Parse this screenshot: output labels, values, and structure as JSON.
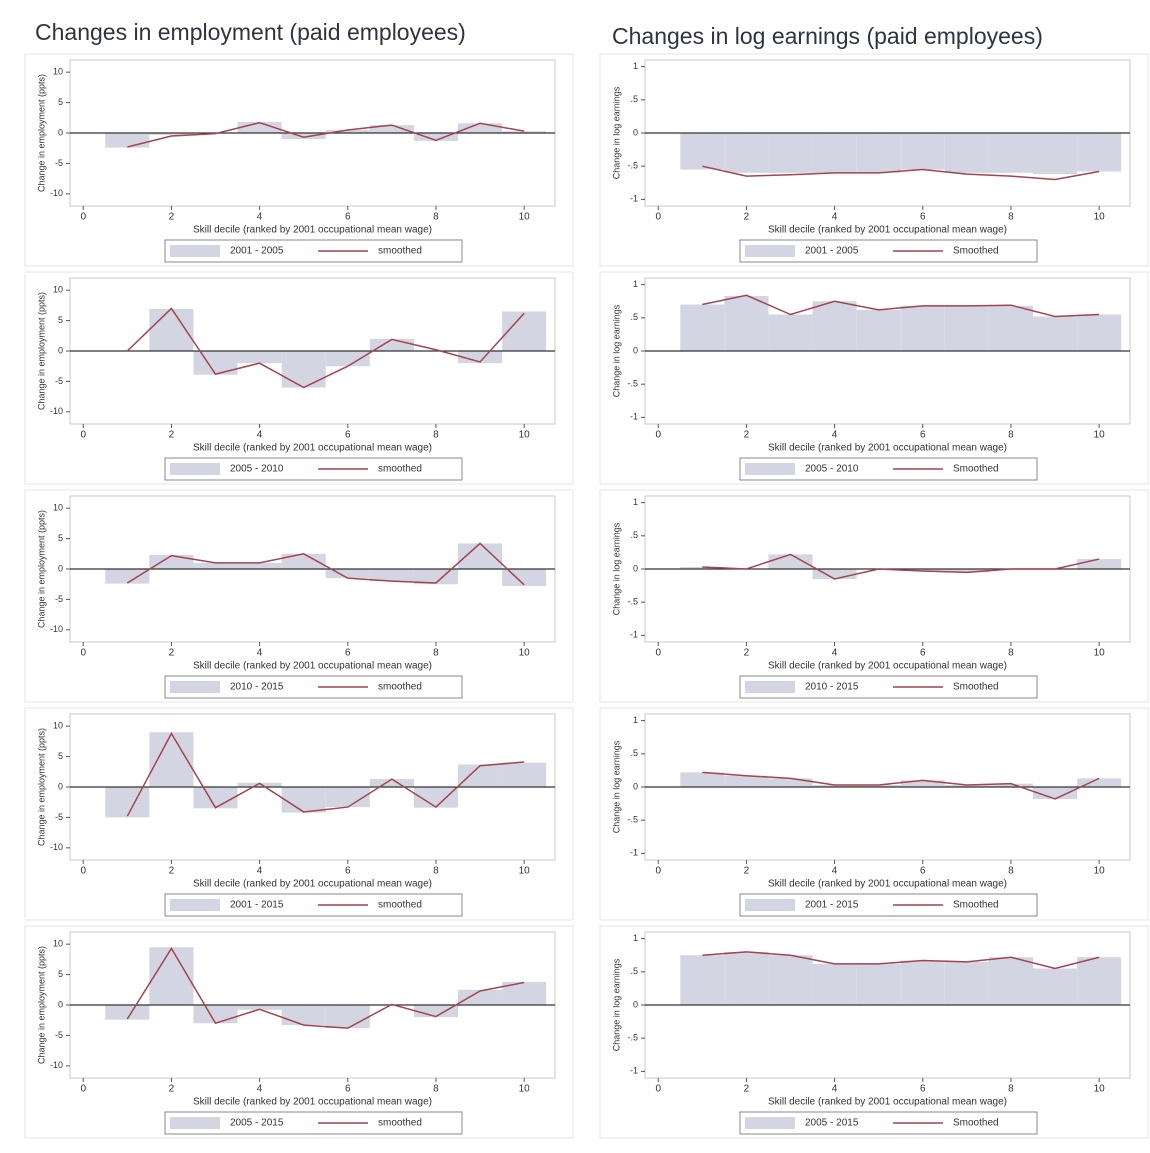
{
  "column_titles": [
    "Changes in employment (paid employees)",
    "Changes in log earnings (paid employees)"
  ],
  "chart_data": [
    {
      "type": "bar",
      "y_label": "Change in employment (ppts)",
      "x_label": "Skill decile (ranked by 2001 occupational mean wage)",
      "x": [
        1,
        2,
        3,
        4,
        5,
        6,
        7,
        8,
        9,
        10
      ],
      "xlim": [
        -0.3,
        10.7
      ],
      "xticks": [
        0,
        2,
        4,
        6,
        8,
        10
      ],
      "ylim": [
        -12,
        12
      ],
      "yticks": [
        -10,
        -5,
        0,
        5,
        10
      ],
      "series": [
        {
          "name": "2001 - 2005",
          "color": "#d3d6e2",
          "values": [
            -2.4,
            -0.3,
            0,
            1.8,
            -1,
            0.5,
            1.3,
            -1.3,
            1.6,
            0.3
          ]
        },
        {
          "name": "smoothed",
          "type": "line",
          "color": "#a3444e",
          "values": [
            -2.3,
            -0.5,
            -0.1,
            1.7,
            -0.7,
            0.5,
            1.3,
            -1.2,
            1.6,
            0.3
          ]
        }
      ]
    },
    {
      "type": "bar",
      "y_label": "Change in log earnings",
      "x_label": "Skill decile (ranked by 2001 occupational mean wage)",
      "x": [
        1,
        2,
        3,
        4,
        5,
        6,
        7,
        8,
        9,
        10
      ],
      "xlim": [
        -0.3,
        10.7
      ],
      "xticks": [
        0,
        2,
        4,
        6,
        8,
        10
      ],
      "ylim": [
        -1.1,
        1.1
      ],
      "yticks": [
        -1,
        {
          "value": -0.5,
          "label": "-.5"
        },
        0,
        {
          "value": 0.5,
          "label": ".5"
        },
        1
      ],
      "series": [
        {
          "name": "2001 - 2005",
          "color": "#d3d6e2",
          "values": [
            -0.55,
            -0.6,
            -0.6,
            -0.6,
            -0.6,
            -0.55,
            -0.6,
            -0.6,
            -0.62,
            -0.58
          ]
        },
        {
          "name": "Smoothed",
          "type": "line",
          "color": "#a3444e",
          "values": [
            -0.5,
            -0.65,
            -0.63,
            -0.6,
            -0.6,
            -0.55,
            -0.62,
            -0.65,
            -0.7,
            -0.58
          ]
        }
      ]
    },
    {
      "type": "bar",
      "y_label": "Change in employment (ppts)",
      "x_label": "Skill decile (ranked by 2001 occupational mean wage)",
      "x": [
        1,
        2,
        3,
        4,
        5,
        6,
        7,
        8,
        9,
        10
      ],
      "xlim": [
        -0.3,
        10.7
      ],
      "xticks": [
        0,
        2,
        4,
        6,
        8,
        10
      ],
      "ylim": [
        -12,
        12
      ],
      "yticks": [
        -10,
        -5,
        0,
        5,
        10
      ],
      "series": [
        {
          "name": "2005 - 2010",
          "color": "#d3d6e2",
          "values": [
            0,
            6.9,
            -3.9,
            -2,
            -6,
            -2.5,
            2,
            0,
            -2,
            6.5
          ]
        },
        {
          "name": "smoothed",
          "type": "line",
          "color": "#a3444e",
          "values": [
            0,
            7,
            -3.8,
            -2,
            -6,
            -2.5,
            1.9,
            0.2,
            -1.8,
            6.2
          ]
        }
      ]
    },
    {
      "type": "bar",
      "y_label": "Change in log earnings",
      "x_label": "Skill decile (ranked by 2001 occupational mean wage)",
      "x": [
        1,
        2,
        3,
        4,
        5,
        6,
        7,
        8,
        9,
        10
      ],
      "xlim": [
        -0.3,
        10.7
      ],
      "xticks": [
        0,
        2,
        4,
        6,
        8,
        10
      ],
      "ylim": [
        -1.1,
        1.1
      ],
      "yticks": [
        -1,
        {
          "value": -0.5,
          "label": "-.5"
        },
        0,
        {
          "value": 0.5,
          "label": ".5"
        },
        1
      ],
      "series": [
        {
          "name": "2005 - 2010",
          "color": "#d3d6e2",
          "values": [
            0.7,
            0.83,
            0.55,
            0.75,
            0.62,
            0.68,
            0.68,
            0.68,
            0.52,
            0.55
          ]
        },
        {
          "name": "Smoothed",
          "type": "line",
          "color": "#a3444e",
          "values": [
            0.7,
            0.84,
            0.55,
            0.75,
            0.62,
            0.68,
            0.68,
            0.69,
            0.52,
            0.55
          ]
        }
      ]
    },
    {
      "type": "bar",
      "y_label": "Change in employment (ppts)",
      "x_label": "Skill decile (ranked by 2001 occupational mean wage)",
      "x": [
        1,
        2,
        3,
        4,
        5,
        6,
        7,
        8,
        9,
        10
      ],
      "xlim": [
        -0.3,
        10.7
      ],
      "xticks": [
        0,
        2,
        4,
        6,
        8,
        10
      ],
      "ylim": [
        -12,
        12
      ],
      "yticks": [
        -10,
        -5,
        0,
        5,
        10
      ],
      "series": [
        {
          "name": "2010 - 2015",
          "color": "#d3d6e2",
          "values": [
            -2.4,
            2.3,
            1,
            1,
            2.5,
            -1.5,
            -2,
            -2.5,
            4.2,
            -2.8
          ]
        },
        {
          "name": "smoothed",
          "type": "line",
          "color": "#a3444e",
          "values": [
            -2.3,
            2.2,
            1,
            1,
            2.5,
            -1.5,
            -2,
            -2.3,
            4.2,
            -2.6
          ]
        }
      ]
    },
    {
      "type": "bar",
      "y_label": "Change in log earnings",
      "x_label": "Skill decile (ranked by 2001 occupational mean wage)",
      "x": [
        1,
        2,
        3,
        4,
        5,
        6,
        7,
        8,
        9,
        10
      ],
      "xlim": [
        -0.3,
        10.7
      ],
      "xticks": [
        0,
        2,
        4,
        6,
        8,
        10
      ],
      "ylim": [
        -1.1,
        1.1
      ],
      "yticks": [
        -1,
        {
          "value": -0.5,
          "label": "-.5"
        },
        0,
        {
          "value": 0.5,
          "label": ".5"
        },
        1
      ],
      "series": [
        {
          "name": "2010 - 2015",
          "color": "#d3d6e2",
          "values": [
            0.03,
            0,
            0.22,
            -0.15,
            0,
            -0.03,
            -0.05,
            0,
            0,
            0.15
          ]
        },
        {
          "name": "Smoothed",
          "type": "line",
          "color": "#a3444e",
          "values": [
            0.03,
            0,
            0.22,
            -0.15,
            0,
            -0.03,
            -0.05,
            0,
            0,
            0.15
          ]
        }
      ]
    },
    {
      "type": "bar",
      "y_label": "Change in employment (ppts)",
      "x_label": "Skill decile (ranked by 2001 occupational mean wage)",
      "x": [
        1,
        2,
        3,
        4,
        5,
        6,
        7,
        8,
        9,
        10
      ],
      "xlim": [
        -0.3,
        10.7
      ],
      "xticks": [
        0,
        2,
        4,
        6,
        8,
        10
      ],
      "ylim": [
        -12,
        12
      ],
      "yticks": [
        -10,
        -5,
        0,
        5,
        10
      ],
      "series": [
        {
          "name": "2001 - 2015",
          "color": "#d3d6e2",
          "values": [
            -5,
            9,
            -3.5,
            0.7,
            -4.2,
            -3.3,
            1.3,
            -3.4,
            3.7,
            4
          ]
        },
        {
          "name": "smoothed",
          "type": "line",
          "color": "#a3444e",
          "values": [
            -4.8,
            8.8,
            -3.4,
            0.6,
            -4.1,
            -3.3,
            1.3,
            -3.3,
            3.5,
            4.1
          ]
        }
      ]
    },
    {
      "type": "bar",
      "y_label": "Change in log earnings",
      "x_label": "Skill decile (ranked by 2001 occupational mean wage)",
      "x": [
        1,
        2,
        3,
        4,
        5,
        6,
        7,
        8,
        9,
        10
      ],
      "xlim": [
        -0.3,
        10.7
      ],
      "xticks": [
        0,
        2,
        4,
        6,
        8,
        10
      ],
      "ylim": [
        -1.1,
        1.1
      ],
      "yticks": [
        -1,
        {
          "value": -0.5,
          "label": "-.5"
        },
        0,
        {
          "value": 0.5,
          "label": ".5"
        },
        1
      ],
      "series": [
        {
          "name": "2001 - 2015",
          "color": "#d3d6e2",
          "values": [
            0.22,
            0.17,
            0.13,
            0.03,
            0.03,
            0.1,
            0.03,
            0.05,
            -0.18,
            0.13
          ]
        },
        {
          "name": "Smoothed",
          "type": "line",
          "color": "#a3444e",
          "values": [
            0.22,
            0.17,
            0.13,
            0.03,
            0.03,
            0.1,
            0.03,
            0.05,
            -0.18,
            0.13
          ]
        }
      ]
    },
    {
      "type": "bar",
      "y_label": "Change in employment (ppts)",
      "x_label": "Skill decile (ranked by 2001 occupational mean wage)",
      "x": [
        1,
        2,
        3,
        4,
        5,
        6,
        7,
        8,
        9,
        10
      ],
      "xlim": [
        -0.3,
        10.7
      ],
      "xticks": [
        0,
        2,
        4,
        6,
        8,
        10
      ],
      "ylim": [
        -12,
        12
      ],
      "yticks": [
        -10,
        -5,
        0,
        5,
        10
      ],
      "series": [
        {
          "name": "2005 - 2015",
          "color": "#d3d6e2",
          "values": [
            -2.4,
            9.5,
            -3,
            -0.8,
            -3.3,
            -3.8,
            0,
            -2,
            2.5,
            3.8
          ]
        },
        {
          "name": "smoothed",
          "type": "line",
          "color": "#a3444e",
          "values": [
            -2.3,
            9.3,
            -3,
            -0.7,
            -3.3,
            -3.8,
            0.1,
            -1.9,
            2.3,
            3.7
          ]
        }
      ]
    },
    {
      "type": "bar",
      "y_label": "Change in log earnings",
      "x_label": "Skill decile (ranked by 2001 occupational mean wage)",
      "x": [
        1,
        2,
        3,
        4,
        5,
        6,
        7,
        8,
        9,
        10
      ],
      "xlim": [
        -0.3,
        10.7
      ],
      "xticks": [
        0,
        2,
        4,
        6,
        8,
        10
      ],
      "ylim": [
        -1.1,
        1.1
      ],
      "yticks": [
        -1,
        {
          "value": -0.5,
          "label": "-.5"
        },
        0,
        {
          "value": 0.5,
          "label": ".5"
        },
        1
      ],
      "series": [
        {
          "name": "2005 - 2015",
          "color": "#d3d6e2",
          "values": [
            0.75,
            0.8,
            0.75,
            0.62,
            0.62,
            0.67,
            0.65,
            0.72,
            0.55,
            0.72
          ]
        },
        {
          "name": "Smoothed",
          "type": "line",
          "color": "#a3444e",
          "values": [
            0.75,
            0.8,
            0.75,
            0.62,
            0.62,
            0.67,
            0.65,
            0.72,
            0.55,
            0.72
          ]
        }
      ]
    }
  ]
}
